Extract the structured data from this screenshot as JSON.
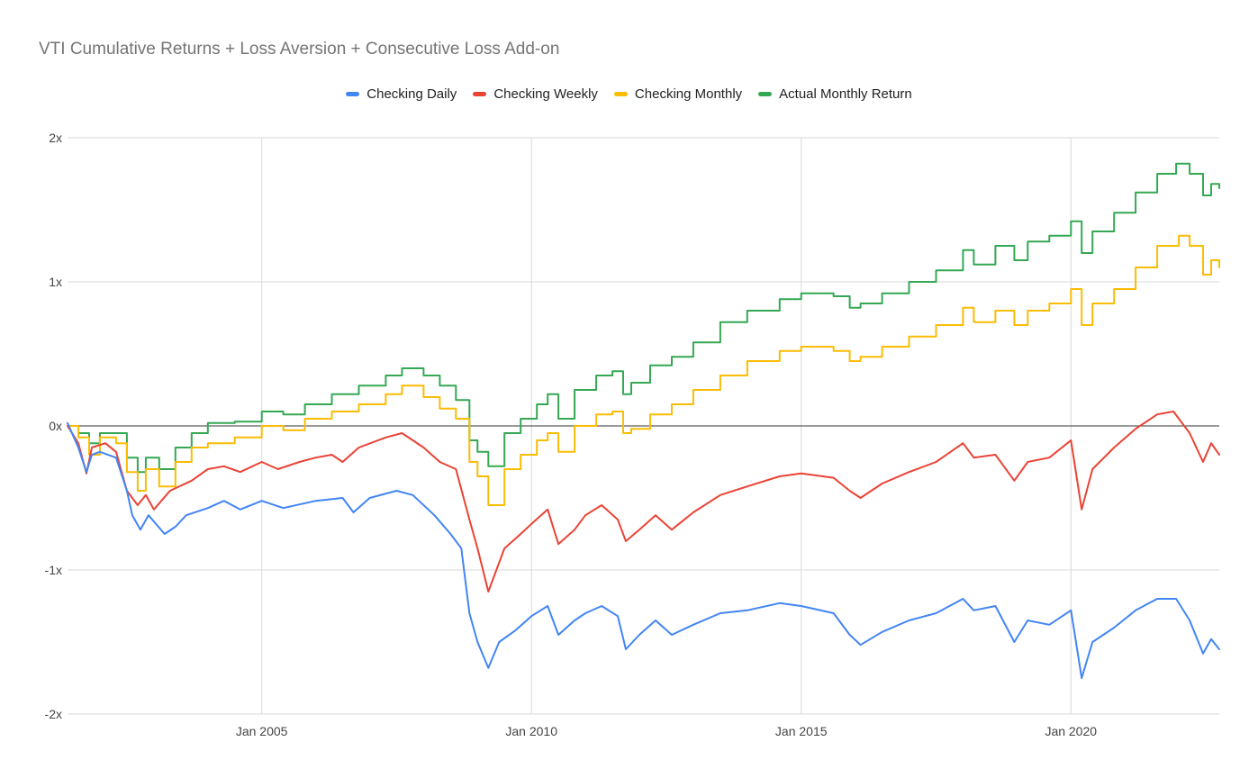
{
  "chart_data": {
    "type": "line",
    "title": "VTI Cumulative Returns + Loss Aversion + Consecutive Loss Add-on",
    "xlabel": "",
    "ylabel": "",
    "x_range": [
      2001.4,
      2022.75
    ],
    "ylim": [
      -2,
      2
    ],
    "y_ticks": [
      {
        "value": 2,
        "label": "2x"
      },
      {
        "value": 1,
        "label": "1x"
      },
      {
        "value": 0,
        "label": "0x"
      },
      {
        "value": -1,
        "label": "-1x"
      },
      {
        "value": -2,
        "label": "-2x"
      }
    ],
    "x_ticks": [
      {
        "value": 2005,
        "label": "Jan 2005"
      },
      {
        "value": 2010,
        "label": "Jan 2010"
      },
      {
        "value": 2015,
        "label": "Jan 2015"
      },
      {
        "value": 2020,
        "label": "Jan 2020"
      }
    ],
    "legend_position": "top",
    "grid": true,
    "series": [
      {
        "name": "Checking Daily",
        "color": "#4285F4",
        "step": false,
        "points": [
          [
            2001.4,
            0.02
          ],
          [
            2001.6,
            -0.15
          ],
          [
            2001.75,
            -0.32
          ],
          [
            2001.85,
            -0.2
          ],
          [
            2002.0,
            -0.18
          ],
          [
            2002.3,
            -0.22
          ],
          [
            2002.5,
            -0.45
          ],
          [
            2002.6,
            -0.62
          ],
          [
            2002.75,
            -0.72
          ],
          [
            2002.9,
            -0.62
          ],
          [
            2003.2,
            -0.75
          ],
          [
            2003.4,
            -0.7
          ],
          [
            2003.6,
            -0.62
          ],
          [
            2004.0,
            -0.57
          ],
          [
            2004.3,
            -0.52
          ],
          [
            2004.6,
            -0.58
          ],
          [
            2005.0,
            -0.52
          ],
          [
            2005.4,
            -0.57
          ],
          [
            2006.0,
            -0.52
          ],
          [
            2006.5,
            -0.5
          ],
          [
            2006.7,
            -0.6
          ],
          [
            2007.0,
            -0.5
          ],
          [
            2007.5,
            -0.45
          ],
          [
            2007.8,
            -0.48
          ],
          [
            2008.2,
            -0.62
          ],
          [
            2008.5,
            -0.75
          ],
          [
            2008.7,
            -0.85
          ],
          [
            2008.85,
            -1.3
          ],
          [
            2009.0,
            -1.5
          ],
          [
            2009.2,
            -1.68
          ],
          [
            2009.4,
            -1.5
          ],
          [
            2009.7,
            -1.42
          ],
          [
            2010.0,
            -1.32
          ],
          [
            2010.3,
            -1.25
          ],
          [
            2010.5,
            -1.45
          ],
          [
            2010.8,
            -1.35
          ],
          [
            2011.0,
            -1.3
          ],
          [
            2011.3,
            -1.25
          ],
          [
            2011.6,
            -1.32
          ],
          [
            2011.75,
            -1.55
          ],
          [
            2012.0,
            -1.45
          ],
          [
            2012.3,
            -1.35
          ],
          [
            2012.6,
            -1.45
          ],
          [
            2013.0,
            -1.38
          ],
          [
            2013.5,
            -1.3
          ],
          [
            2014.0,
            -1.28
          ],
          [
            2014.6,
            -1.23
          ],
          [
            2015.0,
            -1.25
          ],
          [
            2015.6,
            -1.3
          ],
          [
            2015.9,
            -1.45
          ],
          [
            2016.1,
            -1.52
          ],
          [
            2016.5,
            -1.43
          ],
          [
            2017.0,
            -1.35
          ],
          [
            2017.5,
            -1.3
          ],
          [
            2018.0,
            -1.2
          ],
          [
            2018.2,
            -1.28
          ],
          [
            2018.6,
            -1.25
          ],
          [
            2018.95,
            -1.5
          ],
          [
            2019.2,
            -1.35
          ],
          [
            2019.6,
            -1.38
          ],
          [
            2020.0,
            -1.28
          ],
          [
            2020.2,
            -1.75
          ],
          [
            2020.4,
            -1.5
          ],
          [
            2020.8,
            -1.4
          ],
          [
            2021.2,
            -1.28
          ],
          [
            2021.6,
            -1.2
          ],
          [
            2021.95,
            -1.2
          ],
          [
            2022.2,
            -1.35
          ],
          [
            2022.45,
            -1.58
          ],
          [
            2022.6,
            -1.48
          ],
          [
            2022.75,
            -1.55
          ]
        ]
      },
      {
        "name": "Checking Weekly",
        "color": "#EA4335",
        "step": false,
        "points": [
          [
            2001.4,
            0.0
          ],
          [
            2001.6,
            -0.12
          ],
          [
            2001.75,
            -0.33
          ],
          [
            2001.85,
            -0.15
          ],
          [
            2002.1,
            -0.12
          ],
          [
            2002.3,
            -0.18
          ],
          [
            2002.5,
            -0.45
          ],
          [
            2002.7,
            -0.55
          ],
          [
            2002.85,
            -0.48
          ],
          [
            2003.0,
            -0.58
          ],
          [
            2003.3,
            -0.45
          ],
          [
            2003.7,
            -0.38
          ],
          [
            2004.0,
            -0.3
          ],
          [
            2004.3,
            -0.28
          ],
          [
            2004.6,
            -0.32
          ],
          [
            2005.0,
            -0.25
          ],
          [
            2005.3,
            -0.3
          ],
          [
            2005.7,
            -0.25
          ],
          [
            2006.0,
            -0.22
          ],
          [
            2006.3,
            -0.2
          ],
          [
            2006.5,
            -0.25
          ],
          [
            2006.8,
            -0.15
          ],
          [
            2007.3,
            -0.08
          ],
          [
            2007.6,
            -0.05
          ],
          [
            2008.0,
            -0.15
          ],
          [
            2008.3,
            -0.25
          ],
          [
            2008.6,
            -0.3
          ],
          [
            2008.85,
            -0.65
          ],
          [
            2009.0,
            -0.85
          ],
          [
            2009.2,
            -1.15
          ],
          [
            2009.5,
            -0.85
          ],
          [
            2009.8,
            -0.75
          ],
          [
            2010.0,
            -0.68
          ],
          [
            2010.3,
            -0.58
          ],
          [
            2010.5,
            -0.82
          ],
          [
            2010.8,
            -0.72
          ],
          [
            2011.0,
            -0.62
          ],
          [
            2011.3,
            -0.55
          ],
          [
            2011.6,
            -0.65
          ],
          [
            2011.75,
            -0.8
          ],
          [
            2012.0,
            -0.72
          ],
          [
            2012.3,
            -0.62
          ],
          [
            2012.6,
            -0.72
          ],
          [
            2013.0,
            -0.6
          ],
          [
            2013.5,
            -0.48
          ],
          [
            2014.0,
            -0.42
          ],
          [
            2014.6,
            -0.35
          ],
          [
            2015.0,
            -0.33
          ],
          [
            2015.6,
            -0.36
          ],
          [
            2015.9,
            -0.45
          ],
          [
            2016.1,
            -0.5
          ],
          [
            2016.5,
            -0.4
          ],
          [
            2017.0,
            -0.32
          ],
          [
            2017.5,
            -0.25
          ],
          [
            2018.0,
            -0.12
          ],
          [
            2018.2,
            -0.22
          ],
          [
            2018.6,
            -0.2
          ],
          [
            2018.95,
            -0.38
          ],
          [
            2019.2,
            -0.25
          ],
          [
            2019.6,
            -0.22
          ],
          [
            2020.0,
            -0.1
          ],
          [
            2020.2,
            -0.58
          ],
          [
            2020.4,
            -0.3
          ],
          [
            2020.8,
            -0.15
          ],
          [
            2021.2,
            -0.02
          ],
          [
            2021.6,
            0.08
          ],
          [
            2021.9,
            0.1
          ],
          [
            2022.2,
            -0.05
          ],
          [
            2022.45,
            -0.25
          ],
          [
            2022.6,
            -0.12
          ],
          [
            2022.75,
            -0.2
          ]
        ]
      },
      {
        "name": "Checking Monthly",
        "color": "#FBBC04",
        "step": true,
        "points": [
          [
            2001.4,
            0.0
          ],
          [
            2001.6,
            -0.08
          ],
          [
            2001.8,
            -0.2
          ],
          [
            2002.0,
            -0.08
          ],
          [
            2002.3,
            -0.12
          ],
          [
            2002.5,
            -0.32
          ],
          [
            2002.7,
            -0.45
          ],
          [
            2002.85,
            -0.3
          ],
          [
            2003.1,
            -0.42
          ],
          [
            2003.4,
            -0.25
          ],
          [
            2003.7,
            -0.15
          ],
          [
            2004.0,
            -0.12
          ],
          [
            2004.5,
            -0.08
          ],
          [
            2005.0,
            0.0
          ],
          [
            2005.4,
            -0.03
          ],
          [
            2005.8,
            0.05
          ],
          [
            2006.3,
            0.1
          ],
          [
            2006.8,
            0.15
          ],
          [
            2007.3,
            0.22
          ],
          [
            2007.6,
            0.28
          ],
          [
            2008.0,
            0.2
          ],
          [
            2008.3,
            0.12
          ],
          [
            2008.6,
            0.05
          ],
          [
            2008.85,
            -0.25
          ],
          [
            2009.0,
            -0.35
          ],
          [
            2009.2,
            -0.55
          ],
          [
            2009.5,
            -0.3
          ],
          [
            2009.8,
            -0.2
          ],
          [
            2010.1,
            -0.1
          ],
          [
            2010.3,
            -0.05
          ],
          [
            2010.5,
            -0.18
          ],
          [
            2010.8,
            0.0
          ],
          [
            2011.2,
            0.08
          ],
          [
            2011.5,
            0.1
          ],
          [
            2011.7,
            -0.05
          ],
          [
            2011.85,
            -0.02
          ],
          [
            2012.2,
            0.08
          ],
          [
            2012.6,
            0.15
          ],
          [
            2013.0,
            0.25
          ],
          [
            2013.5,
            0.35
          ],
          [
            2014.0,
            0.45
          ],
          [
            2014.6,
            0.52
          ],
          [
            2015.0,
            0.55
          ],
          [
            2015.6,
            0.52
          ],
          [
            2015.9,
            0.45
          ],
          [
            2016.1,
            0.48
          ],
          [
            2016.5,
            0.55
          ],
          [
            2017.0,
            0.62
          ],
          [
            2017.5,
            0.7
          ],
          [
            2018.0,
            0.82
          ],
          [
            2018.2,
            0.72
          ],
          [
            2018.6,
            0.8
          ],
          [
            2018.95,
            0.7
          ],
          [
            2019.2,
            0.8
          ],
          [
            2019.6,
            0.85
          ],
          [
            2020.0,
            0.95
          ],
          [
            2020.2,
            0.7
          ],
          [
            2020.4,
            0.85
          ],
          [
            2020.8,
            0.95
          ],
          [
            2021.2,
            1.1
          ],
          [
            2021.6,
            1.25
          ],
          [
            2022.0,
            1.32
          ],
          [
            2022.2,
            1.25
          ],
          [
            2022.45,
            1.05
          ],
          [
            2022.6,
            1.15
          ],
          [
            2022.75,
            1.1
          ]
        ]
      },
      {
        "name": "Actual Monthly Return",
        "color": "#34A853",
        "step": true,
        "points": [
          [
            2001.4,
            0.0
          ],
          [
            2001.6,
            -0.05
          ],
          [
            2001.8,
            -0.12
          ],
          [
            2002.0,
            -0.05
          ],
          [
            2002.3,
            -0.05
          ],
          [
            2002.5,
            -0.22
          ],
          [
            2002.7,
            -0.32
          ],
          [
            2002.85,
            -0.22
          ],
          [
            2003.1,
            -0.3
          ],
          [
            2003.4,
            -0.15
          ],
          [
            2003.7,
            -0.05
          ],
          [
            2004.0,
            0.02
          ],
          [
            2004.5,
            0.03
          ],
          [
            2005.0,
            0.1
          ],
          [
            2005.4,
            0.08
          ],
          [
            2005.8,
            0.15
          ],
          [
            2006.3,
            0.22
          ],
          [
            2006.8,
            0.28
          ],
          [
            2007.3,
            0.35
          ],
          [
            2007.6,
            0.4
          ],
          [
            2008.0,
            0.35
          ],
          [
            2008.3,
            0.28
          ],
          [
            2008.6,
            0.18
          ],
          [
            2008.85,
            -0.1
          ],
          [
            2009.0,
            -0.18
          ],
          [
            2009.2,
            -0.28
          ],
          [
            2009.5,
            -0.05
          ],
          [
            2009.8,
            0.05
          ],
          [
            2010.1,
            0.15
          ],
          [
            2010.3,
            0.22
          ],
          [
            2010.5,
            0.05
          ],
          [
            2010.8,
            0.25
          ],
          [
            2011.2,
            0.35
          ],
          [
            2011.5,
            0.38
          ],
          [
            2011.7,
            0.22
          ],
          [
            2011.85,
            0.3
          ],
          [
            2012.2,
            0.42
          ],
          [
            2012.6,
            0.48
          ],
          [
            2013.0,
            0.58
          ],
          [
            2013.5,
            0.72
          ],
          [
            2014.0,
            0.8
          ],
          [
            2014.6,
            0.88
          ],
          [
            2015.0,
            0.92
          ],
          [
            2015.6,
            0.9
          ],
          [
            2015.9,
            0.82
          ],
          [
            2016.1,
            0.85
          ],
          [
            2016.5,
            0.92
          ],
          [
            2017.0,
            1.0
          ],
          [
            2017.5,
            1.08
          ],
          [
            2018.0,
            1.22
          ],
          [
            2018.2,
            1.12
          ],
          [
            2018.6,
            1.25
          ],
          [
            2018.95,
            1.15
          ],
          [
            2019.2,
            1.28
          ],
          [
            2019.6,
            1.32
          ],
          [
            2020.0,
            1.42
          ],
          [
            2020.2,
            1.2
          ],
          [
            2020.4,
            1.35
          ],
          [
            2020.8,
            1.48
          ],
          [
            2021.2,
            1.62
          ],
          [
            2021.6,
            1.75
          ],
          [
            2021.95,
            1.82
          ],
          [
            2022.2,
            1.75
          ],
          [
            2022.45,
            1.6
          ],
          [
            2022.6,
            1.68
          ],
          [
            2022.75,
            1.65
          ]
        ]
      }
    ]
  }
}
